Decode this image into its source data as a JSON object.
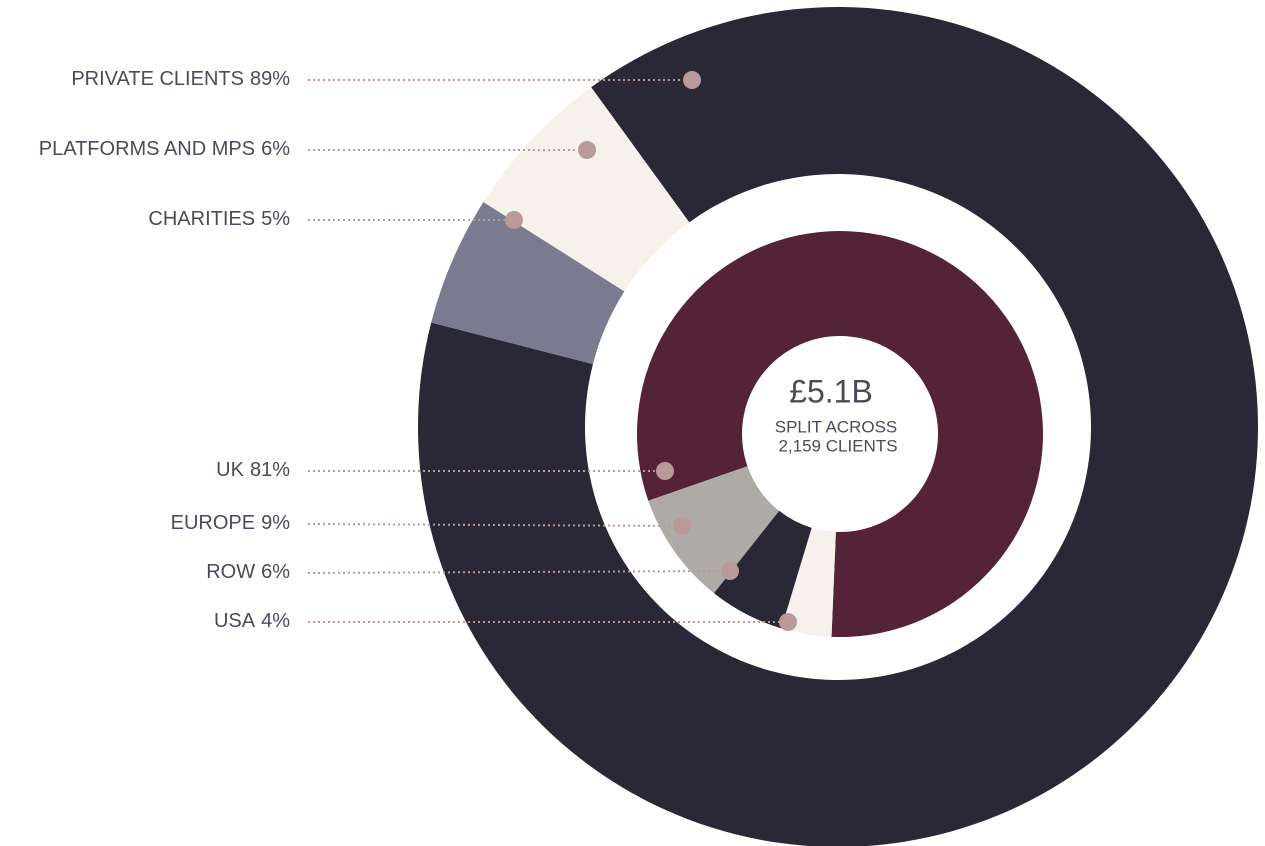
{
  "chart_data": [
    {
      "type": "pie",
      "categories": [
        "PRIVATE CLIENTS",
        "CHARITIES",
        "PLATFORMS AND MPS"
      ],
      "values": [
        89,
        5,
        6
      ],
      "value_labels": [
        "89%",
        "5%",
        "6%"
      ],
      "colors": [
        "#2a2837",
        "#7a7b8e",
        "#f6f1eb"
      ]
    },
    {
      "type": "pie",
      "categories": [
        "UK",
        "USA",
        "ROW",
        "EUROPE"
      ],
      "values": [
        81,
        4,
        6,
        9
      ],
      "value_labels": [
        "81%",
        "4%",
        "6%",
        "9%"
      ],
      "colors": [
        "#552337",
        "#f6f1eb",
        "#2a2837",
        "#aeaaa6"
      ],
      "annotations": [
        "£5.1B",
        "SPLIT ACROSS",
        "2,159 CLIENTS"
      ]
    }
  ]
}
